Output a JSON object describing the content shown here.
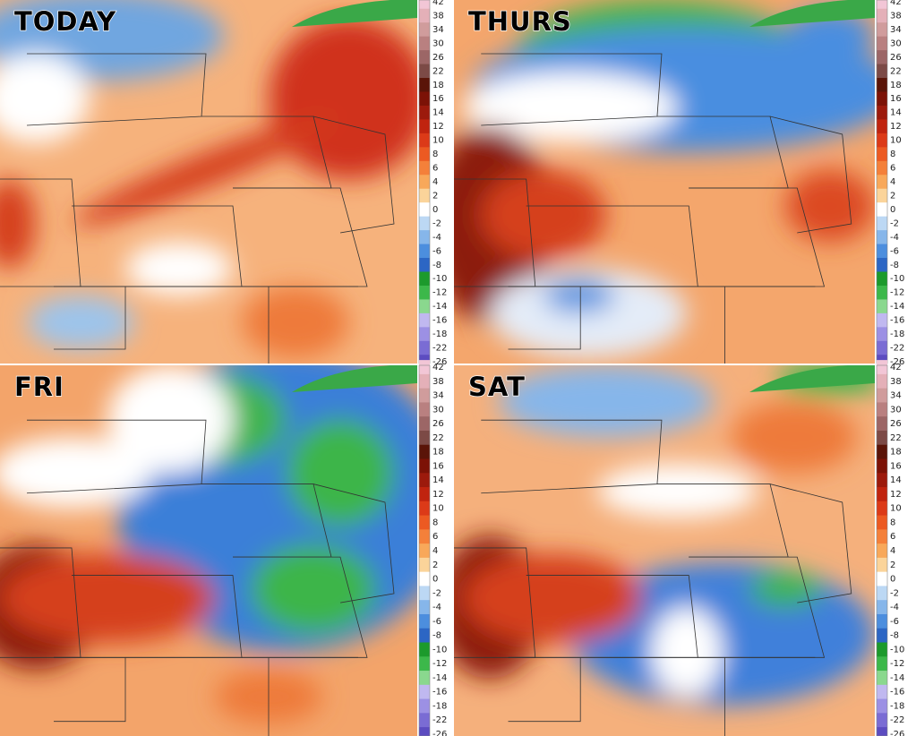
{
  "panels": [
    {
      "title": "TODAY"
    },
    {
      "title": "THURS"
    },
    {
      "title": "FRI"
    },
    {
      "title": "SAT"
    }
  ],
  "colorbar": {
    "labels": [
      42,
      38,
      34,
      30,
      26,
      22,
      18,
      16,
      14,
      12,
      10,
      8,
      6,
      4,
      2,
      0,
      -2,
      -4,
      -6,
      -8,
      -10,
      -12,
      -14,
      -16,
      -18,
      -22,
      -26
    ],
    "colors": [
      "#f2c6d6",
      "#e4b0b8",
      "#d09c9c",
      "#b98080",
      "#9c6666",
      "#7c4a46",
      "#5a1408",
      "#7c1206",
      "#9c1a0c",
      "#c0240f",
      "#dc3a18",
      "#ec5a22",
      "#f4803a",
      "#f8a85a",
      "#fbd49a",
      "#ffffff",
      "#bcd8f4",
      "#86b6ea",
      "#4c8ede",
      "#2c66c4",
      "#1c9a2c",
      "#3cb84a",
      "#8ad88e",
      "#c0b8f0",
      "#9c90e4",
      "#7a6cd4",
      "#5c4cc0"
    ]
  }
}
